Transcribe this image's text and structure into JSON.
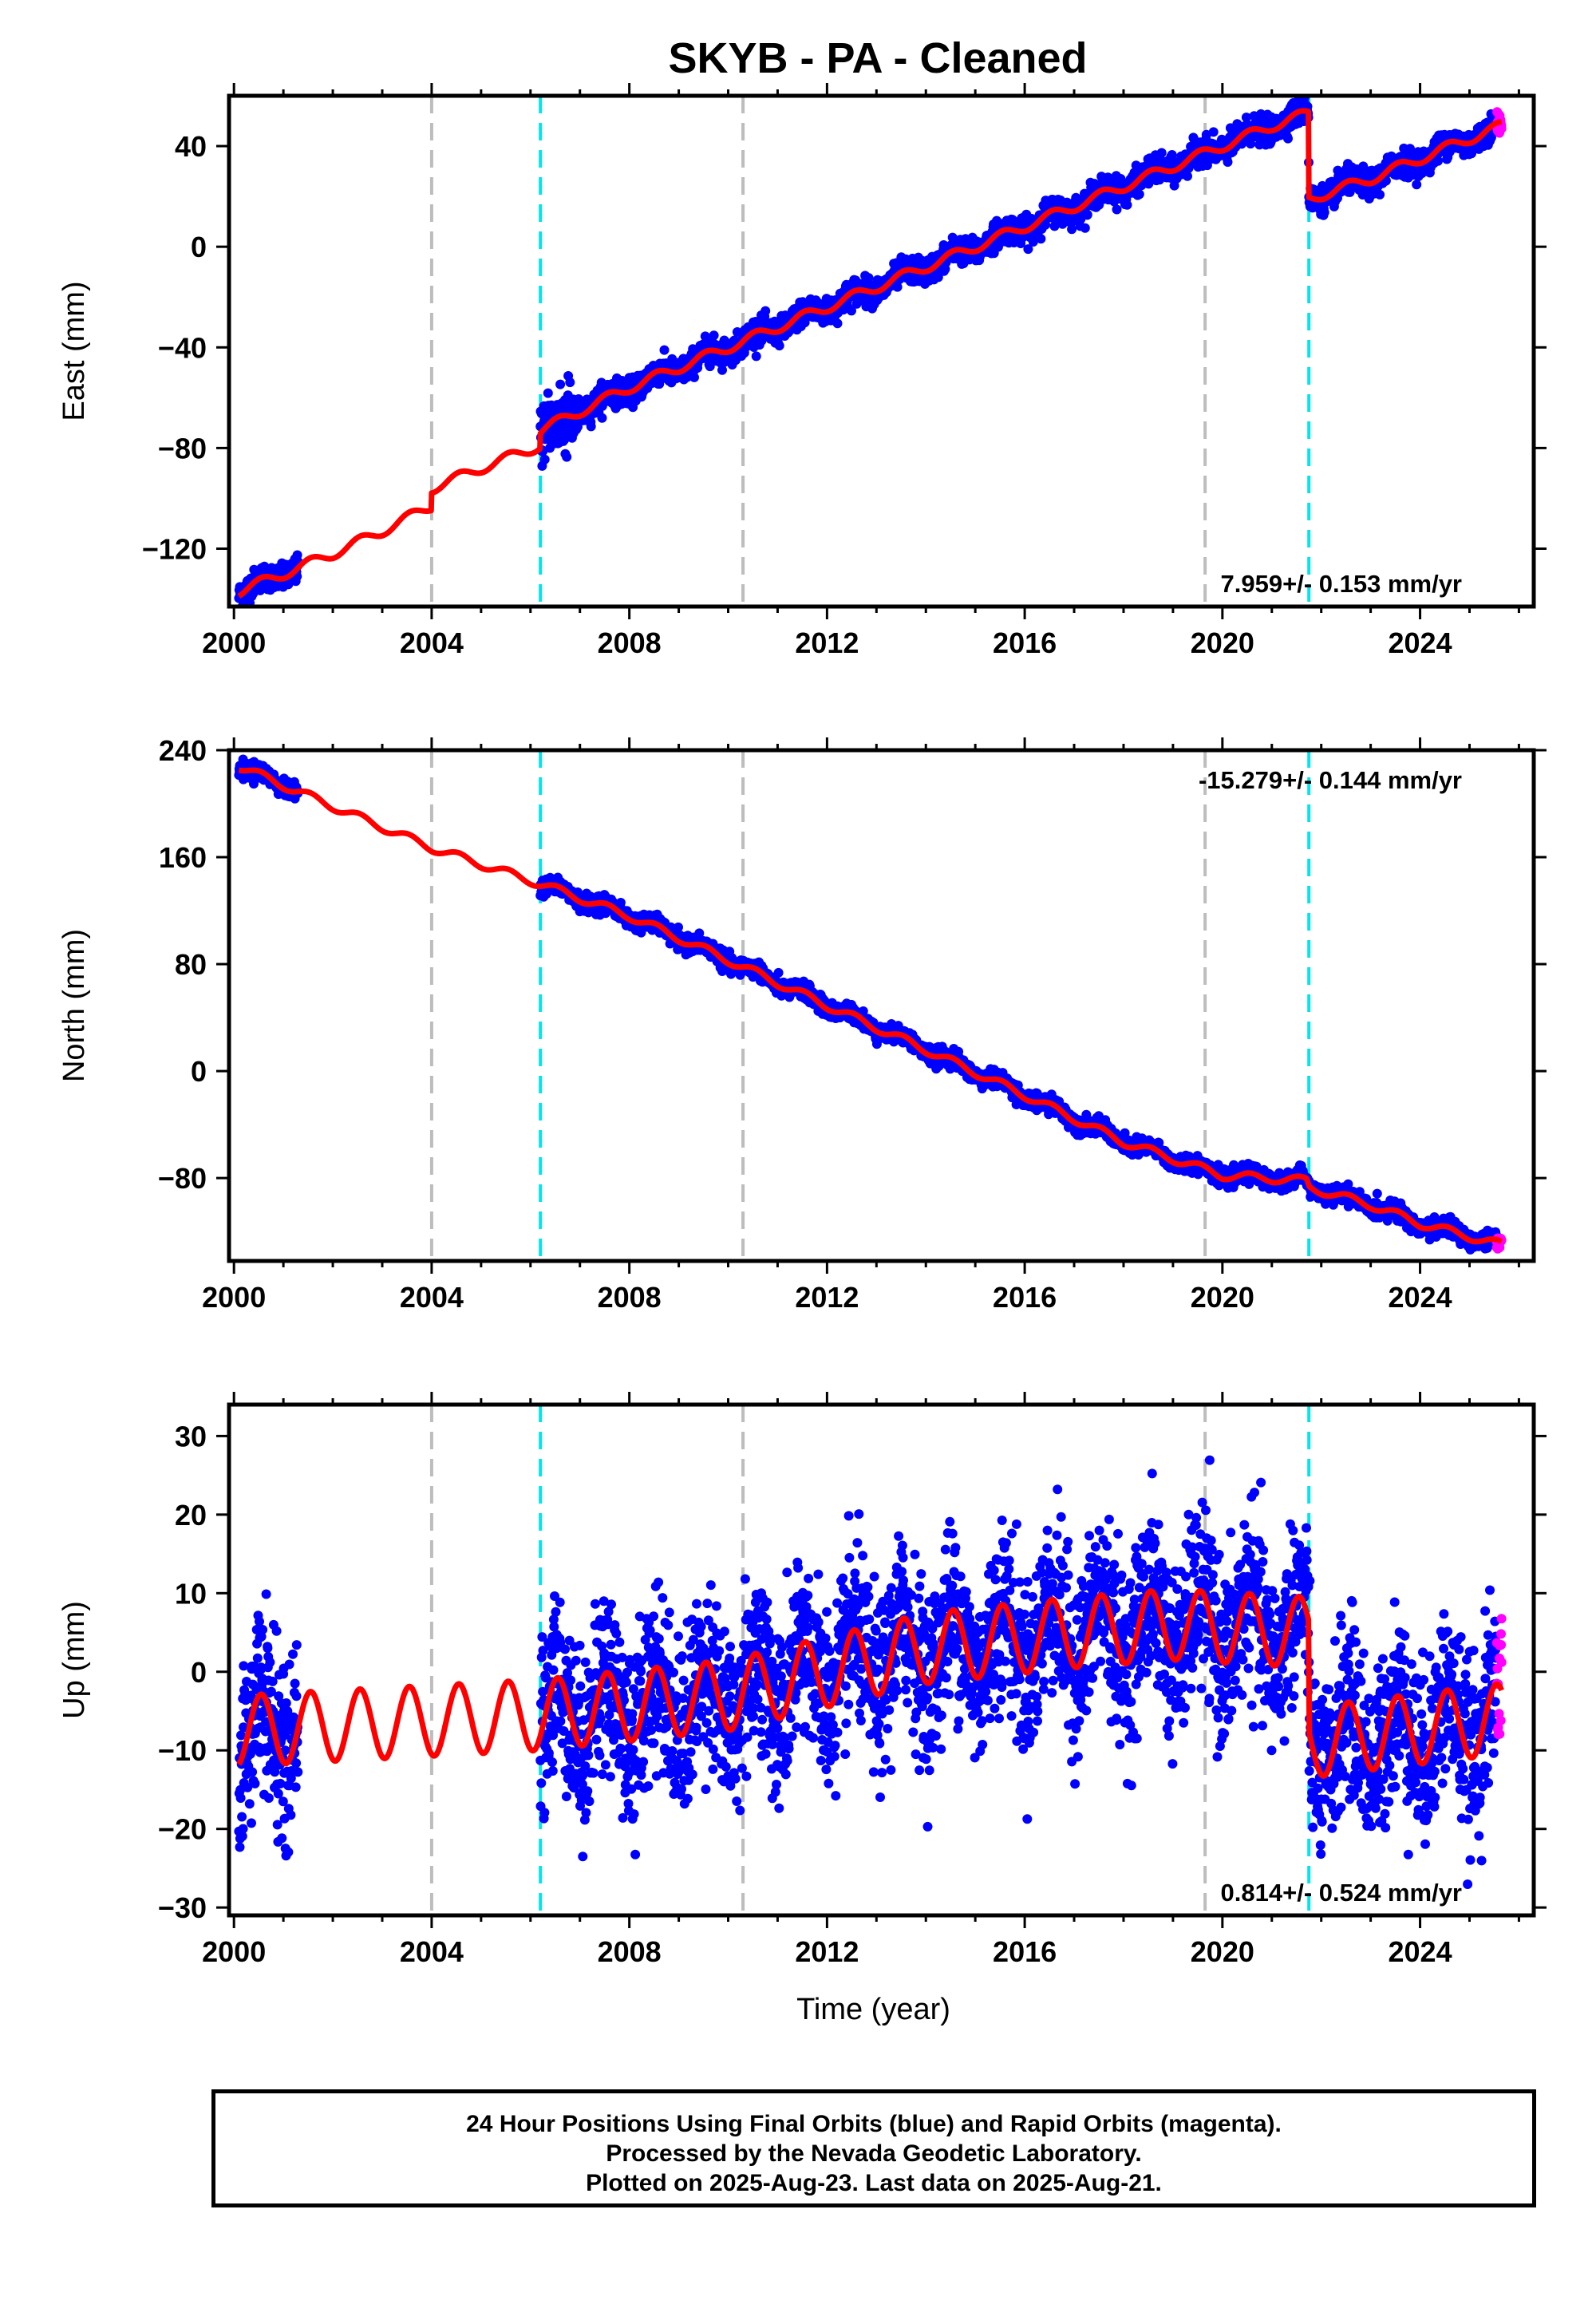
{
  "title": "SKYB  - PA - Cleaned",
  "xlabel": "Time (year)",
  "footer": {
    "line1": "24 Hour Positions Using Final Orbits (blue) and Rapid Orbits (magenta).",
    "line2": "Processed by the Nevada Geodetic Laboratory.",
    "line3": "Plotted on 2025-Aug-23. Last data on 2025-Aug-21."
  },
  "colors": {
    "final_points": "#0000ff",
    "rapid_points": "#ff00ff",
    "model": "#ff0000",
    "antenna_change_line": "#00e5ee",
    "other_event_line": "#bdbdbd"
  },
  "chart_data": [
    {
      "type": "scatter",
      "ylabel": "East (mm)",
      "xlim": [
        1999.9,
        2026.3
      ],
      "ylim": [
        -143,
        60
      ],
      "xticks": [
        2000,
        2004,
        2008,
        2012,
        2016,
        2020,
        2024
      ],
      "yticks": [
        -120,
        -80,
        -40,
        0,
        40
      ],
      "rate_text": "7.959+/- 0.153 mm/yr",
      "rate_position": "bottom-right",
      "event_lines": {
        "cyan": [
          2006.2,
          2021.75
        ],
        "gray": [
          2004.0,
          2010.3,
          2019.65
        ]
      },
      "series": [
        {
          "role": "model",
          "x": [
            2000.1,
            2001.0,
            2002.0,
            2003.0,
            2003.99,
            2004.0,
            2005.0,
            2006.19,
            2006.2,
            2008.0,
            2010.0,
            2012.0,
            2014.0,
            2016.0,
            2018.0,
            2020.0,
            2021.0,
            2021.74,
            2021.75,
            2023.0,
            2024.0,
            2025.0,
            2025.65
          ],
          "y": [
            -137,
            -130,
            -122,
            -113,
            -103,
            -96,
            -88,
            -79,
            -73,
            -56,
            -40,
            -24,
            -8,
            8,
            24,
            40,
            48,
            53,
            19,
            27,
            35,
            43,
            48
          ],
          "annual_amplitude": 2
        },
        {
          "role": "final",
          "segments": [
            [
              2000.1,
              2001.3
            ],
            [
              2006.2,
              2025.55
            ]
          ],
          "scatter": 2.5,
          "sparse_noise": {
            "range": [
              2006.2,
              2006.9
            ],
            "amplitude": 6
          }
        },
        {
          "role": "rapid",
          "x_range": [
            2025.55,
            2025.65
          ],
          "y_range": [
            45,
            54
          ]
        }
      ]
    },
    {
      "type": "scatter",
      "ylabel": "North (mm)",
      "xlim": [
        1999.9,
        2026.3
      ],
      "ylim": [
        -142,
        240
      ],
      "xticks": [
        2000,
        2004,
        2008,
        2012,
        2016,
        2020,
        2024
      ],
      "yticks": [
        -80,
        0,
        80,
        160,
        240
      ],
      "rate_text": "-15.279+/- 0.144 mm/yr",
      "rate_position": "top-right",
      "event_lines": {
        "cyan": [
          2006.2,
          2021.75
        ],
        "gray": [
          2004.0,
          2010.3,
          2019.65
        ]
      },
      "series": [
        {
          "role": "model",
          "x": [
            2000.1,
            2002.0,
            2004.0,
            2006.2,
            2008.0,
            2010.0,
            2012.0,
            2014.0,
            2016.0,
            2018.0,
            2019.6,
            2020.0,
            2021.7,
            2021.76,
            2023.0,
            2024.0,
            2025.65
          ],
          "y": [
            228,
            198,
            167,
            140,
            116,
            83,
            49,
            16,
            -18,
            -53,
            -73,
            -78,
            -82,
            -87,
            -100,
            -114,
            -130
          ],
          "annual_amplitude": 3
        },
        {
          "role": "final",
          "segments": [
            [
              2000.1,
              2001.3
            ],
            [
              2006.2,
              2025.55
            ]
          ],
          "scatter": 3
        },
        {
          "role": "rapid",
          "x_range": [
            2025.55,
            2025.65
          ],
          "y_range": [
            -133,
            -125
          ]
        }
      ]
    },
    {
      "type": "scatter",
      "ylabel": "Up (mm)",
      "xlim": [
        1999.9,
        2026.3
      ],
      "ylim": [
        -31,
        34
      ],
      "xticks": [
        2000,
        2004,
        2008,
        2012,
        2016,
        2020,
        2024
      ],
      "yticks": [
        -30,
        -20,
        -10,
        0,
        10,
        20,
        30
      ],
      "rate_text": "0.814+/- 0.524 mm/yr",
      "rate_position": "bottom-right",
      "event_lines": {
        "cyan": [
          2006.2,
          2021.75
        ],
        "gray": [
          2004.0,
          2010.3,
          2019.65
        ]
      },
      "series": [
        {
          "role": "model",
          "x": [
            2000.1,
            2006.2,
            2010.0,
            2014.0,
            2017.0,
            2019.0,
            2021.74,
            2021.76,
            2023.0,
            2025.65
          ],
          "y": [
            -7.5,
            -5.5,
            -3,
            3,
            5,
            6,
            5,
            -9,
            -8,
            -6
          ],
          "annual_amplitude": 4.5
        },
        {
          "role": "final",
          "segments": [
            [
              2000.1,
              2001.3
            ],
            [
              2006.2,
              2025.55
            ]
          ],
          "scatter": 5.5
        },
        {
          "role": "rapid",
          "x_range": [
            2025.55,
            2025.65
          ],
          "y_range": [
            -8,
            9
          ]
        }
      ]
    }
  ]
}
